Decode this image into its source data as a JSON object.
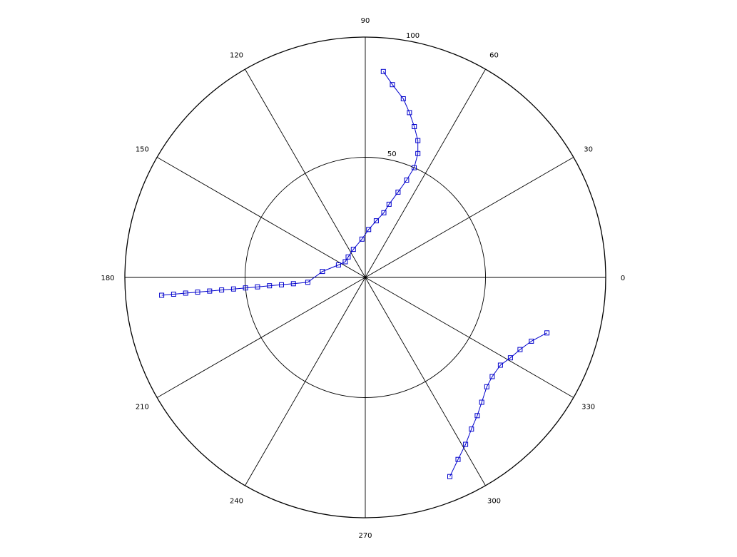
{
  "chart_data": {
    "type": "scatter",
    "subtype": "polar",
    "title": "",
    "xlabel": "",
    "ylabel": "",
    "grid": true,
    "legend": false,
    "theta_unit": "degrees",
    "r_range": [
      0,
      100
    ],
    "r_ticks": [
      {
        "value": 50,
        "label": "50"
      },
      {
        "value": 100,
        "label": "100"
      }
    ],
    "theta_ticks": [
      0,
      30,
      60,
      90,
      120,
      150,
      180,
      210,
      240,
      270,
      300,
      330
    ],
    "theta_tick_labels": [
      "0",
      "30",
      "60",
      "90",
      "120",
      "150",
      "180",
      "210",
      "240",
      "270",
      "300",
      "330"
    ],
    "grid_color": "#000000",
    "series": [
      {
        "color": "#0000cc",
        "marker": "square",
        "points": [
          {
            "theta": 185.0,
            "r": 85.0
          },
          {
            "theta": 185.0,
            "r": 80.0
          },
          {
            "theta": 185.0,
            "r": 75.0
          },
          {
            "theta": 185.0,
            "r": 70.0
          },
          {
            "theta": 185.0,
            "r": 65.0
          },
          {
            "theta": 185.0,
            "r": 60.0
          },
          {
            "theta": 185.0,
            "r": 55.0
          },
          {
            "theta": 185.0,
            "r": 50.0
          },
          {
            "theta": 185.0,
            "r": 45.0
          },
          {
            "theta": 185.0,
            "r": 40.0
          },
          {
            "theta": 185.0,
            "r": 35.0
          },
          {
            "theta": 185.0,
            "r": 30.0
          },
          {
            "theta": 184.8,
            "r": 24.0
          },
          {
            "theta": 172.0,
            "r": 18.0
          },
          {
            "theta": 155.0,
            "r": 12.3
          },
          {
            "theta": 142.0,
            "r": 10.6
          },
          {
            "theta": 130.0,
            "r": 11.1
          },
          {
            "theta": 113.0,
            "r": 12.7
          },
          {
            "theta": 95.0,
            "r": 16.0
          },
          {
            "theta": 86.0,
            "r": 20.0
          },
          {
            "theta": 79.0,
            "r": 24.0
          },
          {
            "theta": 74.0,
            "r": 28.0
          },
          {
            "theta": 72.0,
            "r": 32.0
          },
          {
            "theta": 69.0,
            "r": 38.0
          },
          {
            "theta": 67.0,
            "r": 44.0
          },
          {
            "theta": 66.0,
            "r": 50.0
          },
          {
            "theta": 67.0,
            "r": 56.0
          },
          {
            "theta": 69.0,
            "r": 61.0
          },
          {
            "theta": 72.0,
            "r": 66.0
          },
          {
            "theta": 75.0,
            "r": 71.0
          },
          {
            "theta": 78.0,
            "r": 76.0
          },
          {
            "theta": 82.0,
            "r": 81.0
          },
          {
            "theta": 85.0,
            "r": 86.0
          }
        ]
      },
      {
        "color": "#0000cc",
        "marker": "square",
        "points": [
          {
            "theta": 293.0,
            "r": 90.0
          },
          {
            "theta": 297.0,
            "r": 85.0
          },
          {
            "theta": 301.0,
            "r": 81.0
          },
          {
            "theta": 305.0,
            "r": 77.0
          },
          {
            "theta": 309.0,
            "r": 74.0
          },
          {
            "theta": 313.0,
            "r": 71.0
          },
          {
            "theta": 318.0,
            "r": 68.0
          },
          {
            "theta": 322.0,
            "r": 67.0
          },
          {
            "theta": 327.0,
            "r": 67.0
          },
          {
            "theta": 331.0,
            "r": 69.0
          },
          {
            "theta": 335.0,
            "r": 71.0
          },
          {
            "theta": 339.0,
            "r": 74.0
          },
          {
            "theta": 343.0,
            "r": 79.0
          }
        ]
      }
    ]
  }
}
